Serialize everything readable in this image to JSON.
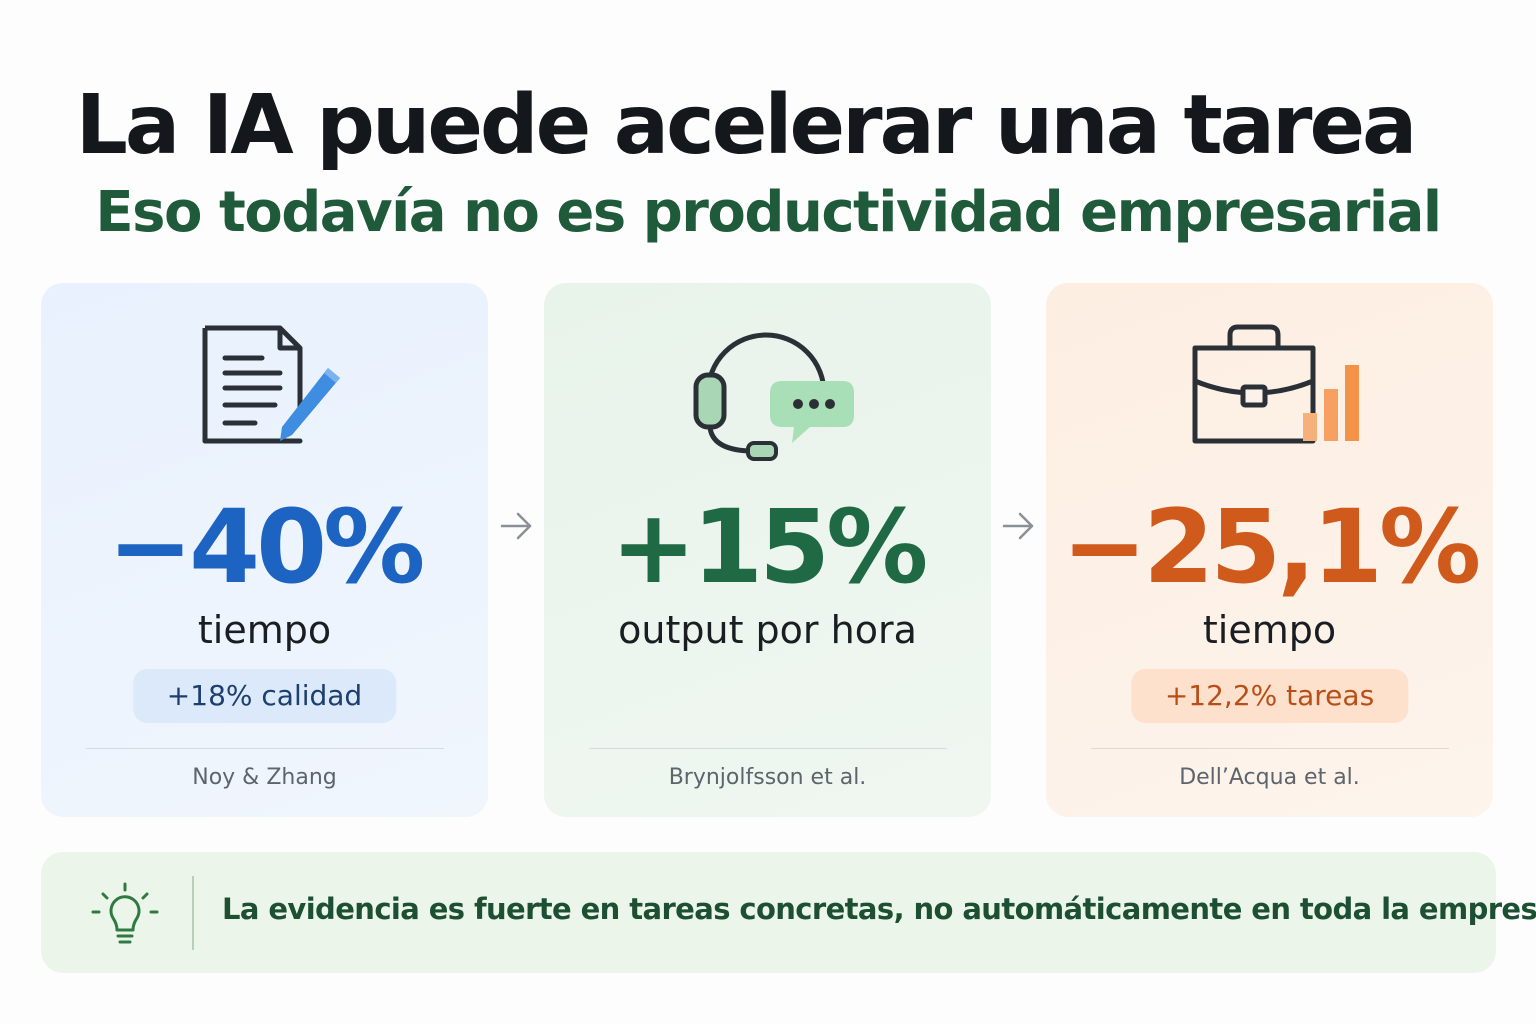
{
  "header": {
    "title": "La IA puede acelerar una tarea",
    "subtitle": "Eso todavía no es productividad empresarial"
  },
  "cards": [
    {
      "icon": "document-edit-icon",
      "value": "−40%",
      "metric": "tiempo",
      "note": "+18% calidad",
      "source": "Noy & Zhang",
      "accent": "#1d63c2"
    },
    {
      "icon": "headset-chat-icon",
      "value": "+15%",
      "metric": "output por hora",
      "note": "",
      "source": "Brynjolfsson et al.",
      "accent": "#1f6a44"
    },
    {
      "icon": "briefcase-chart-icon",
      "value": "−25,1%",
      "metric": "tiempo",
      "note": "+12,2% tareas",
      "source": "Dell’Acqua et al.",
      "accent": "#cf5a1b"
    }
  ],
  "banner": {
    "icon": "lightbulb-icon",
    "text": "La evidencia es fuerte en tareas concretas, no automáticamente en toda la empresa."
  }
}
